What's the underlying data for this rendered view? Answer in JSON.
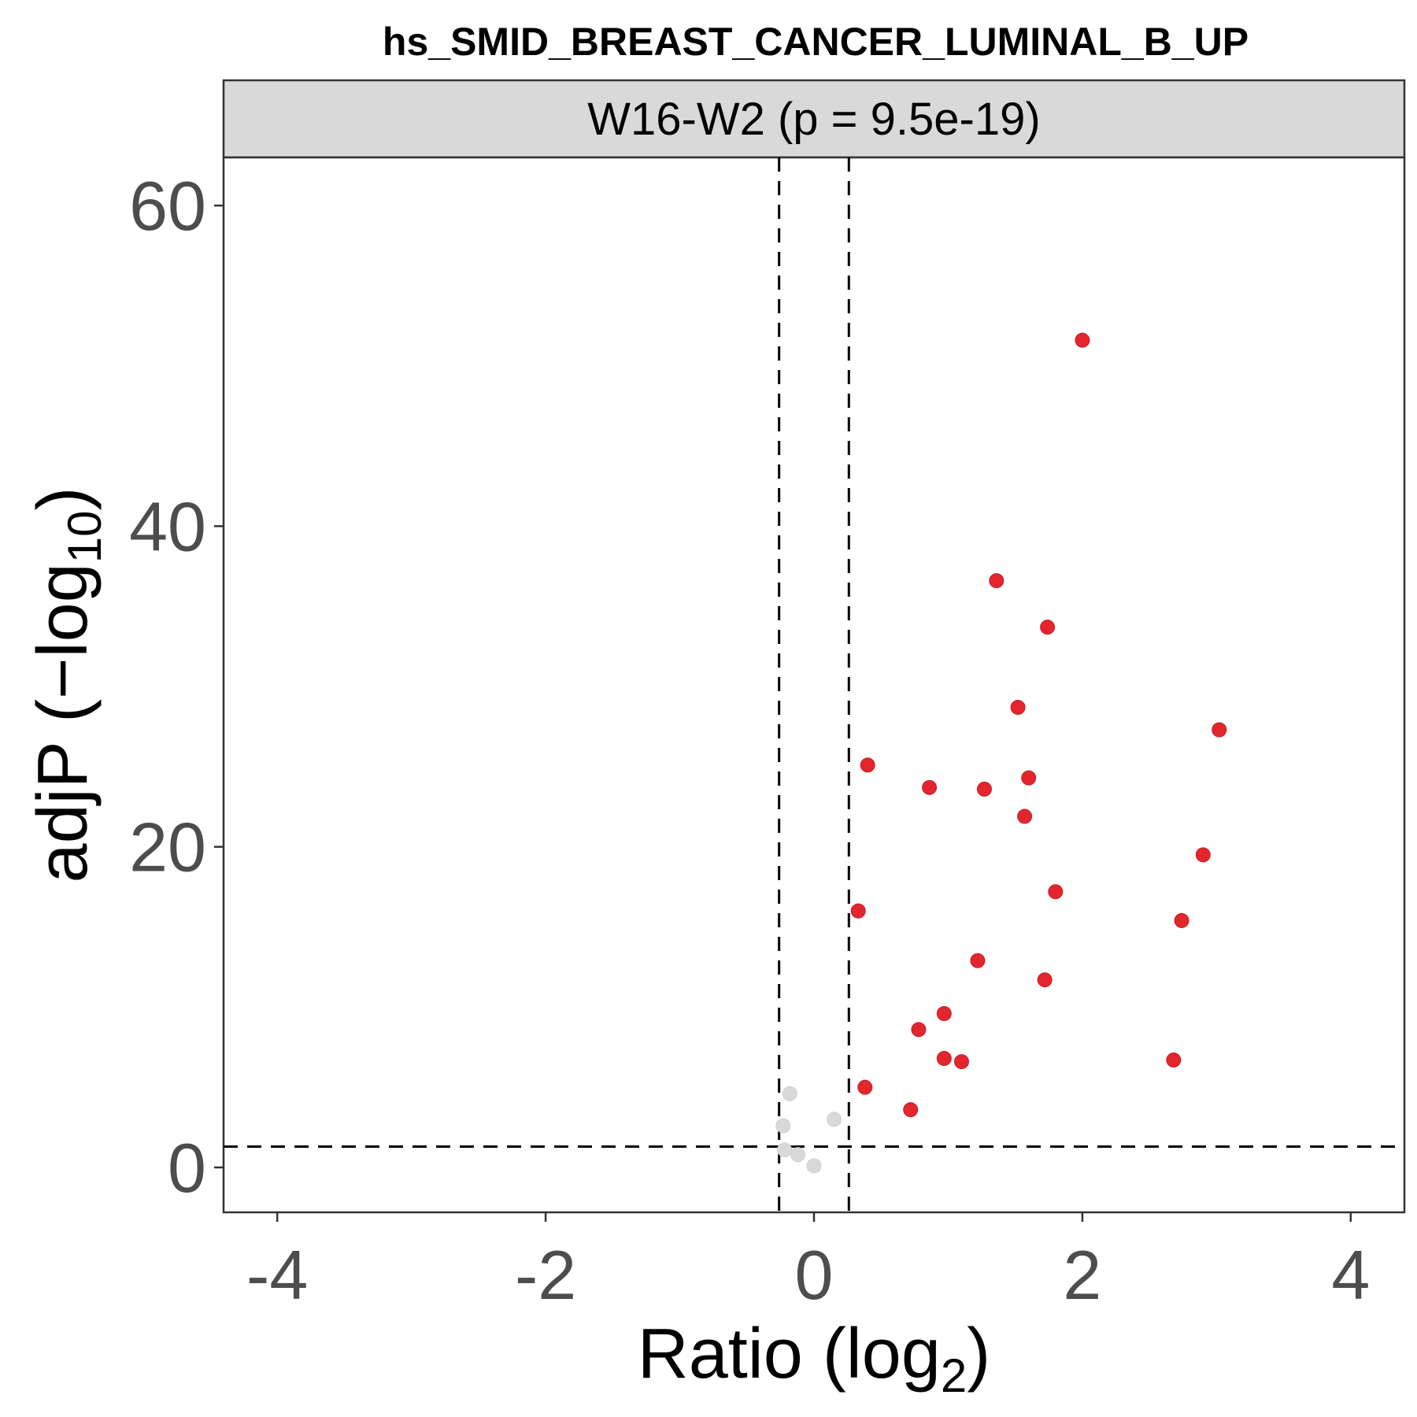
{
  "chart_data": {
    "type": "scatter",
    "title": "hs_SMID_BREAST_CANCER_LUMINAL_B_UP",
    "facet_label": "W16-W2 (p = 9.5e-19)",
    "xlabel": "Ratio (log",
    "xlabel_sub": "2",
    "xlabel_suffix": ")",
    "ylabel": "adjP (−log",
    "ylabel_sub": "10",
    "ylabel_suffix": ")",
    "xlim": [
      -4.4,
      4.4
    ],
    "ylim": [
      -2.8,
      63
    ],
    "x_ticks": [
      -4,
      -2,
      0,
      2,
      4
    ],
    "x_tick_labels": [
      "-4",
      "-2",
      "0",
      "2",
      "4"
    ],
    "y_ticks": [
      0,
      20,
      40,
      60
    ],
    "y_tick_labels": [
      "0",
      "20",
      "40",
      "60"
    ],
    "thresholds": {
      "x": [
        -0.26,
        0.26
      ],
      "y": 1.3
    },
    "colors": {
      "significant": "#e3262e",
      "nonsignificant": "#d9d9d9",
      "strip": "#d9d9d9"
    },
    "series": [
      {
        "name": "significant",
        "points": [
          [
            2.0,
            51.6
          ],
          [
            1.36,
            36.6
          ],
          [
            1.74,
            33.7
          ],
          [
            1.52,
            28.7
          ],
          [
            3.02,
            27.3
          ],
          [
            0.4,
            25.1
          ],
          [
            1.6,
            24.3
          ],
          [
            0.86,
            23.7
          ],
          [
            1.27,
            23.6
          ],
          [
            1.57,
            21.9
          ],
          [
            2.9,
            19.5
          ],
          [
            1.8,
            17.2
          ],
          [
            0.33,
            16.0
          ],
          [
            2.74,
            15.4
          ],
          [
            1.22,
            12.9
          ],
          [
            1.72,
            11.7
          ],
          [
            0.97,
            9.6
          ],
          [
            0.78,
            8.6
          ],
          [
            0.97,
            6.8
          ],
          [
            1.1,
            6.6
          ],
          [
            2.68,
            6.7
          ],
          [
            0.38,
            5.0
          ],
          [
            0.72,
            3.6
          ]
        ]
      },
      {
        "name": "nonsignificant",
        "points": [
          [
            -0.18,
            4.6
          ],
          [
            0.15,
            3.0
          ],
          [
            -0.23,
            2.6
          ],
          [
            -0.22,
            1.1
          ],
          [
            -0.12,
            0.8
          ],
          [
            0.0,
            0.1
          ]
        ]
      }
    ]
  }
}
